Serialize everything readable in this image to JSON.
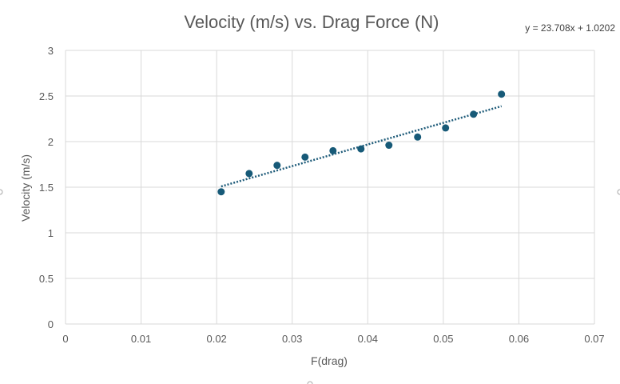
{
  "chart_data": {
    "type": "scatter",
    "title": "Velocity (m/s) vs. Drag Force (N)",
    "xlabel": "F(drag)",
    "ylabel": "Velocity (m/s)",
    "xlim": [
      0,
      0.07
    ],
    "ylim": [
      0,
      3
    ],
    "x_ticks": [
      "0",
      "0.01",
      "0.02",
      "0.03",
      "0.04",
      "0.05",
      "0.06",
      "0.07"
    ],
    "y_ticks": [
      "0",
      "0.5",
      "1",
      "1.5",
      "2",
      "2.5",
      "3"
    ],
    "grid": true,
    "legend": "none",
    "series": [
      {
        "color": "#175a78",
        "points": [
          {
            "x": 0.0206,
            "y": 1.45
          },
          {
            "x": 0.0243,
            "y": 1.65
          },
          {
            "x": 0.028,
            "y": 1.74
          },
          {
            "x": 0.0317,
            "y": 1.83
          },
          {
            "x": 0.0354,
            "y": 1.9
          },
          {
            "x": 0.0391,
            "y": 1.92
          },
          {
            "x": 0.0428,
            "y": 1.96
          },
          {
            "x": 0.0466,
            "y": 2.05
          },
          {
            "x": 0.0503,
            "y": 2.15
          },
          {
            "x": 0.054,
            "y": 2.3
          },
          {
            "x": 0.0577,
            "y": 2.52
          }
        ]
      }
    ],
    "trendline": {
      "type": "linear",
      "slope": 23.708,
      "intercept": 1.0202,
      "x_range": [
        0.0206,
        0.0577
      ],
      "equation": "y = 23.708x + 1.0202",
      "color": "#1f5c7a"
    }
  }
}
